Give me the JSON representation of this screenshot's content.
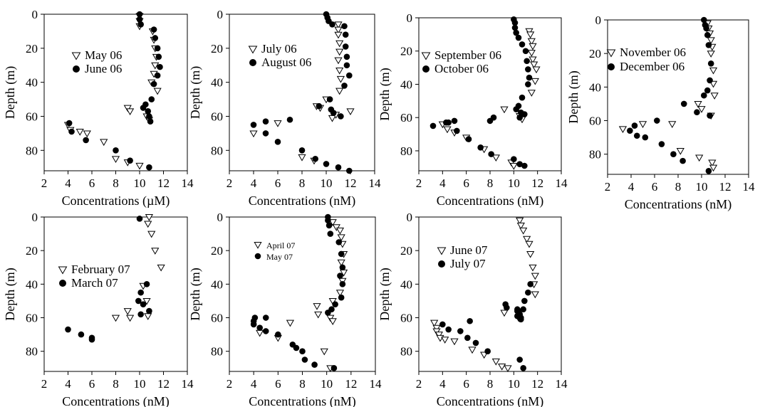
{
  "chart_data": [
    {
      "type": "scatter",
      "xlabel": "Concentrations (µM)",
      "ylabel": "Depth (m)",
      "xlim": [
        2,
        14
      ],
      "ylim": [
        0,
        92
      ],
      "xticks": [
        "2",
        "4",
        "6",
        "8",
        "10",
        "12",
        "14"
      ],
      "yticks": [
        "0",
        "20",
        "40",
        "60",
        "80"
      ],
      "legend_position": "middle-left",
      "series": [
        {
          "name": "May 06",
          "marker": "triangle-down-open",
          "x": [
            10,
            10,
            10,
            11.1,
            11.2,
            11.3,
            11.4,
            11.3,
            11.2,
            11.0,
            11.5,
            9.0,
            9.2,
            10.6,
            10.8,
            4.0,
            4.2,
            5.0,
            5.6,
            7.0,
            8.0,
            9.0,
            10.0
          ],
          "y": [
            1,
            4,
            7,
            10,
            15,
            20,
            25,
            30,
            35,
            40,
            45,
            55,
            57,
            60,
            62,
            65,
            68,
            69,
            70,
            75,
            85,
            87,
            89
          ]
        },
        {
          "name": "June 06",
          "marker": "circle-filled",
          "x": [
            10,
            10,
            10.1,
            11.2,
            11.3,
            11.5,
            11.6,
            11.7,
            11.5,
            11.2,
            11.0,
            10.5,
            10.3,
            10.7,
            10.8,
            10.9,
            4.1,
            4.3,
            5.5,
            8.0,
            9.2,
            10.8
          ],
          "y": [
            0,
            3,
            6,
            9,
            14,
            20,
            25,
            31,
            36,
            41,
            50,
            53,
            55,
            57,
            60,
            63,
            64,
            69,
            74,
            80,
            86,
            90
          ]
        }
      ]
    },
    {
      "type": "scatter",
      "xlabel": "Concentrations (nM)",
      "ylabel": "Depth (m)",
      "xlim": [
        2,
        14
      ],
      "ylim": [
        0,
        92
      ],
      "xticks": [
        "2",
        "4",
        "6",
        "8",
        "10",
        "12",
        "14"
      ],
      "yticks": [
        "0",
        "20",
        "40",
        "60",
        "80"
      ],
      "legend_position": "top-left",
      "series": [
        {
          "name": "July 06",
          "marker": "triangle-down-open",
          "x": [
            11.0,
            11.0,
            11.0,
            11.1,
            11.1,
            11.0,
            11.1,
            11.2,
            11.1,
            10.0,
            9.2,
            9.5,
            12.0,
            10.5,
            10.8,
            6.0,
            4.0,
            8.0,
            9.0
          ],
          "y": [
            6,
            9,
            12,
            17,
            22,
            27,
            33,
            38,
            45,
            50,
            54,
            55,
            57,
            61,
            59,
            64,
            70,
            84,
            86
          ]
        },
        {
          "name": "August 06",
          "marker": "circle-filled",
          "x": [
            10.0,
            10.1,
            10.2,
            10.5,
            11.5,
            11.6,
            11.6,
            11.7,
            11.7,
            11.9,
            11.5,
            10.3,
            9.4,
            10.4,
            10.6,
            11.2,
            7.0,
            5.0,
            4.0,
            5.0,
            6.0,
            8.0,
            9.1,
            10.0,
            11.0,
            11.9
          ],
          "y": [
            0,
            2,
            4,
            6,
            7,
            12,
            19,
            25,
            30,
            36,
            42,
            50,
            54,
            56,
            58,
            60,
            62,
            63,
            65,
            70,
            75,
            80,
            85,
            88,
            90,
            92
          ]
        }
      ]
    },
    {
      "type": "scatter",
      "xlabel": "Concentrations (nM)",
      "ylabel": "Depth (m)",
      "xlim": [
        2,
        14
      ],
      "ylim": [
        0,
        92
      ],
      "xticks": [
        "2",
        "4",
        "6",
        "8",
        "10",
        "12",
        "14"
      ],
      "yticks": [
        "0",
        "20",
        "40",
        "60",
        "80"
      ],
      "legend_position": "top-left",
      "series": [
        {
          "name": "September 06",
          "marker": "triangle-down-open",
          "x": [
            11.3,
            11.4,
            11.5,
            11.6,
            11.5,
            11.6,
            11.7,
            11.9,
            11.8,
            11.5,
            9.2,
            10.5,
            10.7,
            4.0,
            4.4,
            5.0,
            6.0,
            7.5,
            8.5,
            9.8,
            10.0
          ],
          "y": [
            8,
            10,
            14,
            17,
            21,
            25,
            28,
            31,
            38,
            45,
            55,
            59,
            61,
            64,
            67,
            69,
            72,
            79,
            84,
            87,
            89
          ]
        },
        {
          "name": "October 06",
          "marker": "circle-filled",
          "x": [
            10.0,
            10.1,
            10.1,
            10.2,
            10.4,
            10.7,
            11.0,
            11.1,
            11.2,
            11.3,
            11.2,
            10.7,
            10.4,
            10.2,
            10.6,
            10.9,
            10.5,
            8.3,
            8.0,
            5.0,
            4.5,
            4.3,
            3.2,
            5.2,
            6.2,
            7.2,
            8.1,
            10.0,
            10.5,
            10.9
          ],
          "y": [
            1,
            3,
            6,
            9,
            12,
            16,
            20,
            26,
            31,
            36,
            40,
            48,
            53,
            55,
            57,
            58,
            60,
            60,
            62,
            62,
            63,
            63,
            65,
            68,
            73,
            78,
            82,
            85,
            88,
            89
          ]
        }
      ]
    },
    {
      "type": "scatter",
      "xlabel": "Concentrations (nM)",
      "ylabel": "Depth (m)",
      "xlim": [
        2,
        14
      ],
      "ylim": [
        0,
        92
      ],
      "xticks": [
        "2",
        "4",
        "6",
        "8",
        "10",
        "12",
        "14"
      ],
      "yticks": [
        "0",
        "20",
        "40",
        "60",
        "80"
      ],
      "legend_position": "top-left",
      "series": [
        {
          "name": "November 06",
          "marker": "triangle-down-open",
          "x": [
            10.5,
            10.6,
            10.7,
            10.8,
            10.9,
            10.8,
            11.0,
            11.0,
            11.1,
            9.7,
            10.0,
            10.8,
            5.0,
            3.3,
            7.5,
            8.2,
            9.8,
            10.9,
            11.0
          ],
          "y": [
            2,
            5,
            8,
            12,
            16,
            20,
            30,
            38,
            45,
            50,
            53,
            57,
            62,
            65,
            62,
            78,
            82,
            85,
            88
          ]
        },
        {
          "name": "December 06",
          "marker": "circle-filled",
          "x": [
            10.2,
            10.3,
            10.4,
            10.5,
            10.6,
            10.8,
            10.7,
            10.5,
            10.2,
            8.5,
            9.6,
            10.7,
            6.2,
            4.3,
            3.9,
            4.5,
            5.2,
            6.6,
            7.6,
            8.4,
            10.6
          ],
          "y": [
            0,
            3,
            5,
            9,
            15,
            26,
            36,
            42,
            45,
            50,
            55,
            57,
            60,
            63,
            66,
            69,
            70,
            74,
            80,
            84,
            90
          ]
        }
      ]
    },
    {
      "type": "scatter",
      "xlabel": "Concentrations (nM)",
      "ylabel": "Depth (m)",
      "xlim": [
        2,
        14
      ],
      "ylim": [
        0,
        92
      ],
      "xticks": [
        "2",
        "4",
        "6",
        "8",
        "10",
        "12",
        "14"
      ],
      "yticks": [
        "0",
        "20",
        "40",
        "60",
        "80"
      ],
      "legend_position": "middle-left",
      "series": [
        {
          "name": "February 07",
          "marker": "triangle-down-open",
          "x": [
            10.8,
            10.7,
            11.0,
            11.3,
            11.8,
            10.3,
            10.6,
            9.0,
            8.0,
            9.2,
            10.7
          ],
          "y": [
            0,
            4,
            10,
            20,
            30,
            41,
            50,
            56,
            60,
            60,
            59
          ]
        },
        {
          "name": "March 07",
          "marker": "circle-filled",
          "x": [
            10.0,
            10.6,
            10.1,
            9.9,
            10.3,
            10.8,
            10.1,
            4.0,
            5.1,
            6.0,
            6.0
          ],
          "y": [
            1,
            40,
            45,
            50,
            52,
            56,
            58,
            67,
            70,
            72,
            73
          ]
        }
      ]
    },
    {
      "type": "scatter",
      "xlabel": "Concentrations (nM)",
      "ylabel": "Depth (m)",
      "xlim": [
        2,
        14
      ],
      "ylim": [
        0,
        92
      ],
      "xticks": [
        "2",
        "4",
        "6",
        "8",
        "10",
        "12",
        "14"
      ],
      "yticks": [
        "0",
        "20",
        "40",
        "60",
        "80"
      ],
      "legend_position": "top-left",
      "series": [
        {
          "name": "April 07",
          "marker": "triangle-down-open",
          "x": [
            10.5,
            10.8,
            11.1,
            11.2,
            11.3,
            11.4,
            11.2,
            11.4,
            11.3,
            11.1,
            10.5,
            9.2,
            9.3,
            10.3,
            10.5,
            7.0,
            4.5,
            6.0,
            9.8,
            10.3
          ],
          "y": [
            3,
            6,
            8,
            12,
            16,
            22,
            27,
            33,
            38,
            45,
            50,
            53,
            58,
            60,
            62,
            63,
            69,
            72,
            80,
            90
          ]
        },
        {
          "name": "May 07",
          "marker": "circle-filled",
          "x": [
            10.1,
            10.1,
            10.2,
            10.3,
            11.0,
            11.2,
            11.3,
            11.1,
            11.3,
            11.2,
            10.7,
            10.4,
            10.1,
            4.1,
            4.0,
            4.0,
            4.5,
            5.0,
            5.0,
            6.0,
            7.2,
            7.5,
            8.0,
            8.2,
            9.0,
            10.6
          ],
          "y": [
            0,
            2,
            5,
            10,
            15,
            22,
            30,
            35,
            40,
            48,
            52,
            55,
            57,
            60,
            62,
            64,
            66,
            60,
            68,
            70,
            76,
            78,
            80,
            85,
            88,
            90
          ]
        }
      ]
    },
    {
      "type": "scatter",
      "xlabel": "Concentrations (nM)",
      "ylabel": "Depth (m)",
      "xlim": [
        2,
        14
      ],
      "ylim": [
        0,
        92
      ],
      "xticks": [
        "2",
        "4",
        "6",
        "8",
        "10",
        "12",
        "14"
      ],
      "yticks": [
        "0",
        "20",
        "40",
        "60",
        "80"
      ],
      "legend_position": "top-left",
      "series": [
        {
          "name": "June 07",
          "marker": "triangle-down-open",
          "x": [
            10.5,
            10.6,
            10.8,
            11.1,
            11.3,
            11.4,
            11.6,
            11.8,
            11.7,
            11.8,
            9.2,
            10.4,
            3.3,
            3.5,
            3.5,
            3.7,
            3.8,
            4.2,
            5.0,
            6.5,
            7.5,
            8.5,
            9.0,
            9.5
          ],
          "y": [
            2,
            5,
            8,
            13,
            16,
            22,
            30,
            35,
            40,
            46,
            57,
            60,
            63,
            66,
            68,
            70,
            72,
            73,
            74,
            79,
            82,
            86,
            89,
            90
          ]
        },
        {
          "name": "July 07",
          "marker": "circle-filled",
          "x": [
            10.3,
            10.4,
            10.5,
            10.6,
            10.9,
            11.4,
            11.2,
            10.8,
            9.3,
            9.4,
            10.3,
            10.5,
            10.6,
            10.3,
            6.3,
            4.0,
            4.5,
            5.5,
            6.1,
            6.8,
            7.8,
            10.5,
            10.8
          ],
          "y": [
            55,
            56,
            58,
            60,
            50,
            40,
            45,
            55,
            52,
            54,
            56,
            58,
            61,
            59,
            62,
            64,
            67,
            68,
            72,
            75,
            80,
            85,
            90
          ]
        }
      ]
    }
  ]
}
